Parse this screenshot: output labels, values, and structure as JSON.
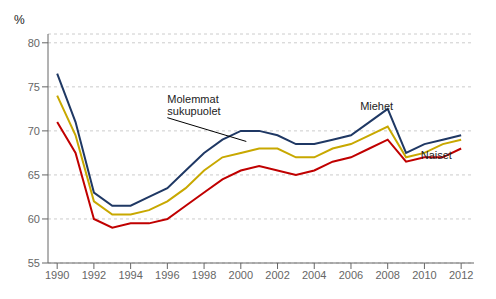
{
  "chart_data": {
    "type": "line",
    "ylabel": "%",
    "x": [
      1990,
      1991,
      1992,
      1993,
      1994,
      1995,
      1996,
      1997,
      1998,
      1999,
      2000,
      2001,
      2002,
      2003,
      2004,
      2005,
      2006,
      2007,
      2008,
      2009,
      2010,
      2011,
      2012
    ],
    "series": [
      {
        "color": "#1f3864",
        "values": [
          76.5,
          71.0,
          63.0,
          61.5,
          61.5,
          62.5,
          63.5,
          65.5,
          67.5,
          69.0,
          70.0,
          70.0,
          69.5,
          68.5,
          68.5,
          69.0,
          69.5,
          71.0,
          72.5,
          67.5,
          68.5,
          69.0,
          69.5
        ]
      },
      {
        "color": "#c8a800",
        "values": [
          74.0,
          69.5,
          62.0,
          60.5,
          60.5,
          61.0,
          62.0,
          63.5,
          65.5,
          67.0,
          67.5,
          68.0,
          68.0,
          67.0,
          67.0,
          68.0,
          68.5,
          69.5,
          70.5,
          67.0,
          67.5,
          68.5,
          69.0
        ]
      },
      {
        "color": "#c00000",
        "values": [
          71.0,
          67.5,
          60.0,
          59.0,
          59.5,
          59.5,
          60.0,
          61.5,
          63.0,
          64.5,
          65.5,
          66.0,
          65.5,
          65.0,
          65.5,
          66.5,
          67.0,
          68.0,
          69.0,
          66.5,
          67.0,
          67.0,
          68.0
        ]
      }
    ],
    "xlim": [
      1989.5,
      2012.7
    ],
    "xticks": [
      1990,
      1992,
      1994,
      1996,
      1998,
      2000,
      2002,
      2004,
      2006,
      2008,
      2010,
      2012
    ],
    "ylim": [
      55,
      81
    ],
    "yticks": [
      55,
      60,
      65,
      70,
      75,
      80
    ],
    "grid": true,
    "annotations": [
      {
        "text": "Molemmat\nsukupuolet",
        "x": 1996.0,
        "y": 71.5,
        "arrow_to": [
          2000.3,
          68.8
        ]
      },
      {
        "text": "Miehet",
        "x": 2006.5,
        "y": 72.0
      },
      {
        "text": "Naiset",
        "x": 2009.8,
        "y": 66.5
      }
    ]
  }
}
